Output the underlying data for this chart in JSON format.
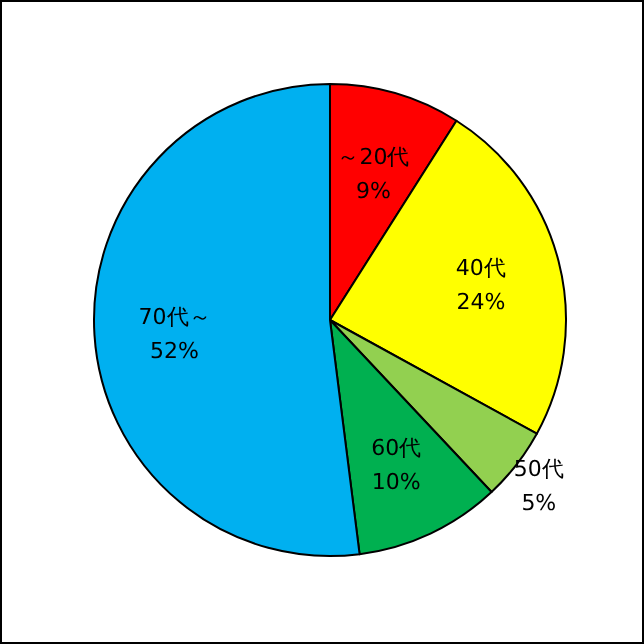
{
  "chart_data": {
    "type": "pie",
    "categories": [
      "～20代",
      "40代",
      "50代",
      "60代",
      "70代～"
    ],
    "values": [
      9,
      24,
      5,
      10,
      52
    ],
    "colors": [
      "#ff0000",
      "#ffff00",
      "#92d050",
      "#00b050",
      "#00b0f0"
    ],
    "value_labels": [
      "9%",
      "24%",
      "5%",
      "10%",
      "52%"
    ]
  }
}
